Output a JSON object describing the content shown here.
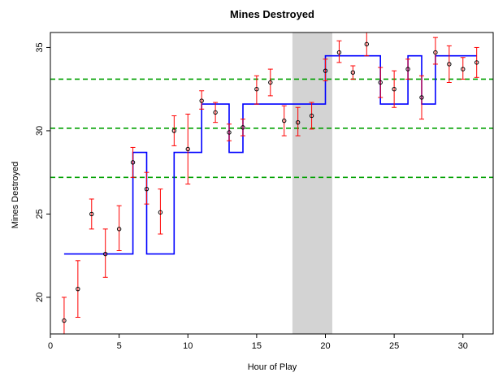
{
  "chart_data": {
    "type": "scatter",
    "title": "Mines Destroyed",
    "xlabel": "Hour of Play",
    "ylabel": "Mines Destroyed",
    "xlim": [
      0,
      32.2
    ],
    "ylim": [
      17.8,
      35.9
    ],
    "x_ticks": [
      0,
      5,
      10,
      15,
      20,
      25,
      30
    ],
    "y_ticks": [
      20,
      25,
      30,
      35
    ],
    "grid": false,
    "shaded_band": {
      "x_from": 17.6,
      "x_to": 20.5,
      "color": "#d3d3d3"
    },
    "reference_lines": [
      27.2,
      30.15,
      33.1
    ],
    "reference_line_color": "#00a000",
    "point_color": "#000000",
    "errorbar_color": "#ff0000",
    "step_color": "#0000ff",
    "points": [
      {
        "x": 1,
        "y": 18.6,
        "lo": 17.3,
        "hi": 20.0
      },
      {
        "x": 2,
        "y": 20.5,
        "lo": 18.8,
        "hi": 22.2
      },
      {
        "x": 3,
        "y": 25.0,
        "lo": 24.1,
        "hi": 25.9
      },
      {
        "x": 4,
        "y": 22.6,
        "lo": 21.2,
        "hi": 24.1
      },
      {
        "x": 5,
        "y": 24.1,
        "lo": 22.8,
        "hi": 25.5
      },
      {
        "x": 6,
        "y": 28.1,
        "lo": 27.2,
        "hi": 29.0
      },
      {
        "x": 7,
        "y": 26.5,
        "lo": 25.6,
        "hi": 27.5
      },
      {
        "x": 8,
        "y": 25.1,
        "lo": 23.8,
        "hi": 26.5
      },
      {
        "x": 9,
        "y": 30.0,
        "lo": 29.1,
        "hi": 30.9
      },
      {
        "x": 10,
        "y": 28.9,
        "lo": 26.8,
        "hi": 31.0
      },
      {
        "x": 11,
        "y": 31.8,
        "lo": 31.3,
        "hi": 32.4
      },
      {
        "x": 12,
        "y": 31.1,
        "lo": 30.5,
        "hi": 31.7
      },
      {
        "x": 13,
        "y": 29.9,
        "lo": 29.4,
        "hi": 30.4
      },
      {
        "x": 14,
        "y": 30.2,
        "lo": 29.7,
        "hi": 30.7
      },
      {
        "x": 15,
        "y": 32.5,
        "lo": 31.6,
        "hi": 33.3
      },
      {
        "x": 16,
        "y": 32.9,
        "lo": 32.1,
        "hi": 33.7
      },
      {
        "x": 17,
        "y": 30.6,
        "lo": 29.7,
        "hi": 31.5
      },
      {
        "x": 18,
        "y": 30.5,
        "lo": 29.7,
        "hi": 31.4
      },
      {
        "x": 19,
        "y": 30.9,
        "lo": 30.1,
        "hi": 31.7
      },
      {
        "x": 20,
        "y": 33.6,
        "lo": 33.0,
        "hi": 34.3
      },
      {
        "x": 21,
        "y": 34.7,
        "lo": 34.1,
        "hi": 35.4
      },
      {
        "x": 22,
        "y": 33.5,
        "lo": 33.1,
        "hi": 33.9
      },
      {
        "x": 23,
        "y": 35.2,
        "lo": 34.5,
        "hi": 36.0
      },
      {
        "x": 24,
        "y": 32.9,
        "lo": 32.0,
        "hi": 33.8
      },
      {
        "x": 25,
        "y": 32.5,
        "lo": 31.4,
        "hi": 33.6
      },
      {
        "x": 26,
        "y": 33.7,
        "lo": 33.1,
        "hi": 34.3
      },
      {
        "x": 27,
        "y": 32.0,
        "lo": 30.7,
        "hi": 33.3
      },
      {
        "x": 28,
        "y": 34.7,
        "lo": 34.0,
        "hi": 35.6
      },
      {
        "x": 29,
        "y": 34.0,
        "lo": 32.9,
        "hi": 35.1
      },
      {
        "x": 30,
        "y": 33.7,
        "lo": 33.1,
        "hi": 34.4
      },
      {
        "x": 31,
        "y": 34.1,
        "lo": 33.2,
        "hi": 35.0
      }
    ],
    "step_line": [
      [
        1,
        22.6
      ],
      [
        6,
        22.6
      ],
      [
        6,
        28.7
      ],
      [
        7,
        28.7
      ],
      [
        7,
        22.6
      ],
      [
        9,
        22.6
      ],
      [
        9,
        28.7
      ],
      [
        11,
        28.7
      ],
      [
        11,
        31.6
      ],
      [
        13,
        31.6
      ],
      [
        13,
        28.7
      ],
      [
        14,
        28.7
      ],
      [
        14,
        31.6
      ],
      [
        20,
        31.6
      ],
      [
        20,
        34.5
      ],
      [
        24,
        34.5
      ],
      [
        24,
        31.6
      ],
      [
        26,
        31.6
      ],
      [
        26,
        34.5
      ],
      [
        27,
        34.5
      ],
      [
        27,
        31.6
      ],
      [
        28,
        31.6
      ],
      [
        28,
        34.5
      ],
      [
        31,
        34.5
      ]
    ]
  }
}
